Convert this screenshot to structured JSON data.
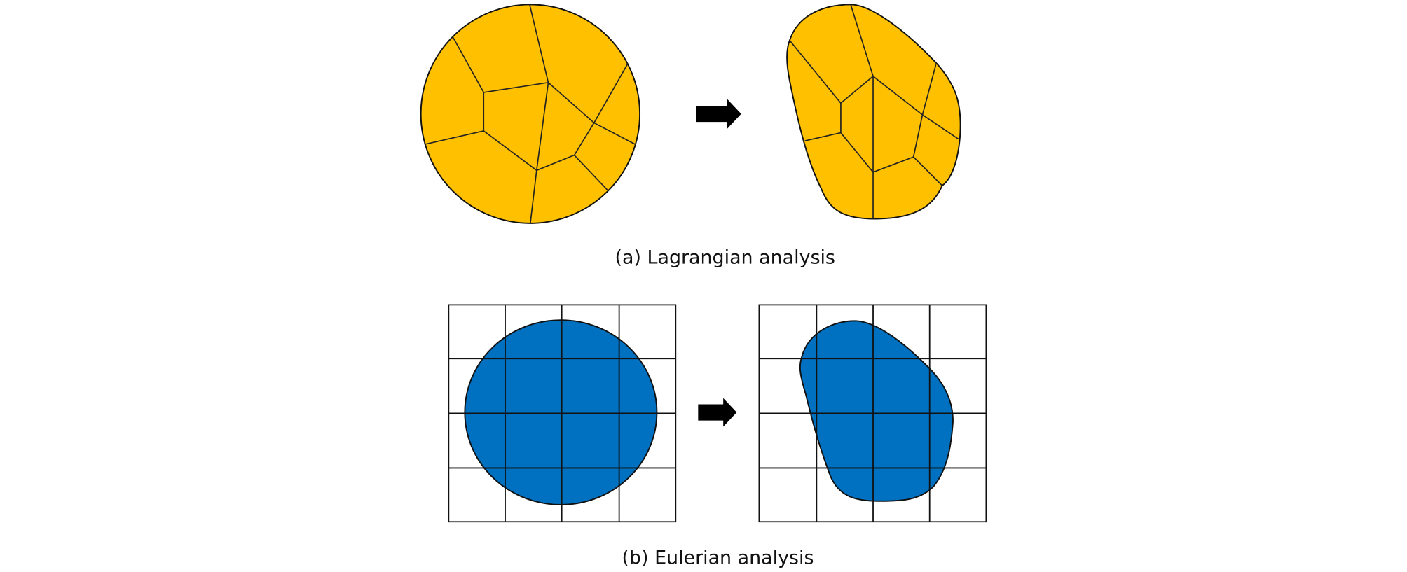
{
  "panels": [
    {
      "caption": "(a) Lagrangian analysis"
    },
    {
      "caption": "(b) Eulerian analysis"
    }
  ]
}
